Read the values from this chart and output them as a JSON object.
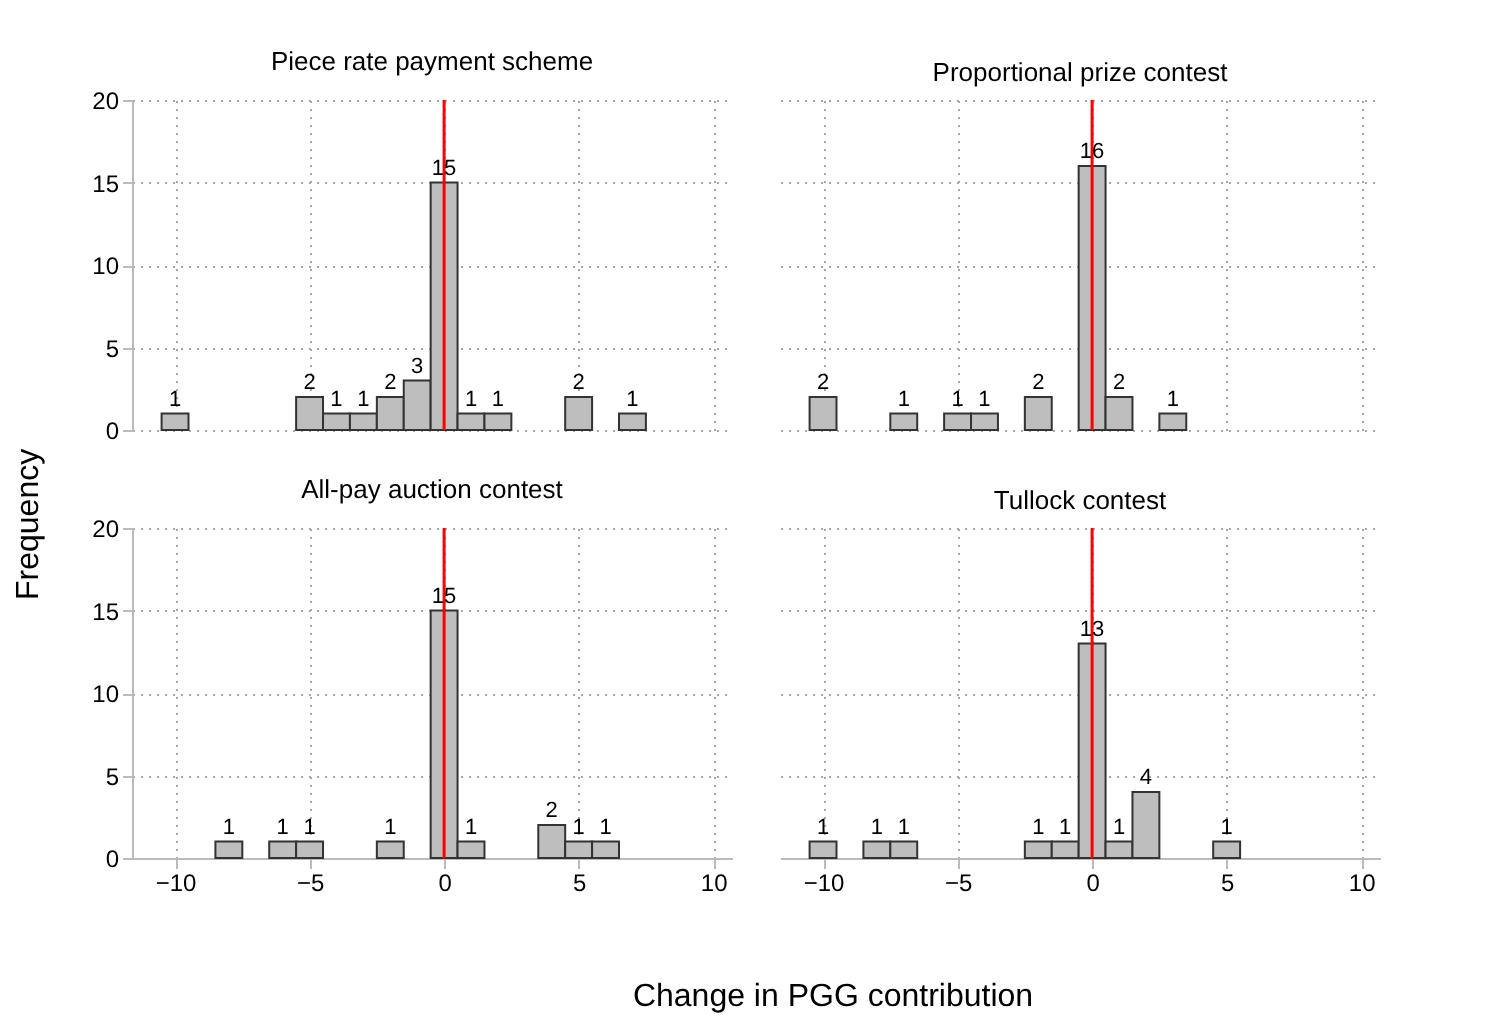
{
  "chart_data": [
    {
      "type": "histogram",
      "title": "Piece rate payment scheme",
      "ylabel": "Frequency",
      "bins": [
        -10.5,
        -9.5,
        -8.5,
        -7.5,
        -6.5,
        -5.5,
        -4.5,
        -3.5,
        -2.5,
        -1.5,
        -0.5,
        0.5,
        1.5,
        2.5,
        3.5,
        4.5,
        5.5,
        6.5,
        7.5
      ],
      "values": [
        1,
        0,
        0,
        0,
        0,
        2,
        1,
        1,
        2,
        3,
        15,
        1,
        1,
        0,
        0,
        2,
        0,
        1
      ],
      "value_labels": [
        "1",
        null,
        null,
        null,
        null,
        "2",
        "1",
        "1",
        "2",
        "3",
        "15",
        "1",
        "1",
        null,
        null,
        "2",
        null,
        "1"
      ],
      "color": "#bebebe",
      "xlim": [
        -11.6,
        10.7
      ],
      "xticks": [
        -10,
        -5,
        0,
        5,
        10
      ],
      "ylim": [
        0,
        20
      ],
      "yticks": [
        0,
        5,
        10,
        15,
        20
      ],
      "grid": true,
      "tick_labels": "y",
      "ref_lines": [
        {
          "axis": "x",
          "value": 0,
          "color": "#ff0000"
        }
      ]
    },
    {
      "type": "histogram",
      "title": "Proportional prize contest",
      "bins": [
        -10.5,
        -9.5,
        -8.5,
        -7.5,
        -6.5,
        -5.5,
        -4.5,
        -3.5,
        -2.5,
        -1.5,
        -0.5,
        0.5,
        1.5,
        2.5,
        3.5,
        4.5,
        5.5,
        6.5,
        7.5
      ],
      "values": [
        2,
        0,
        0,
        1,
        0,
        1,
        1,
        0,
        2,
        0,
        16,
        2,
        0,
        1,
        0,
        0,
        0,
        0
      ],
      "value_labels": [
        "2",
        null,
        null,
        "1",
        null,
        "1",
        "1",
        null,
        "2",
        null,
        "16",
        "2",
        null,
        "1",
        null,
        null,
        null,
        null
      ],
      "color": "#bebebe",
      "xlim": [
        -11.6,
        10.7
      ],
      "xticks": [
        -10,
        -5,
        0,
        5,
        10
      ],
      "ylim": [
        0,
        20
      ],
      "yticks": [
        0,
        5,
        10,
        15,
        20
      ],
      "grid": true,
      "tick_labels": false,
      "ref_lines": [
        {
          "axis": "x",
          "value": 0,
          "color": "#ff0000"
        }
      ]
    },
    {
      "type": "histogram",
      "title": "All-pay auction contest",
      "xlabel": "Change in PGG contribution",
      "bins": [
        -10.5,
        -9.5,
        -8.5,
        -7.5,
        -6.5,
        -5.5,
        -4.5,
        -3.5,
        -2.5,
        -1.5,
        -0.5,
        0.5,
        1.5,
        2.5,
        3.5,
        4.5,
        5.5,
        6.5,
        7.5
      ],
      "values": [
        0,
        0,
        1,
        0,
        1,
        1,
        0,
        0,
        1,
        0,
        15,
        1,
        0,
        0,
        2,
        1,
        1,
        0
      ],
      "value_labels": [
        null,
        null,
        "1",
        null,
        "1",
        "1",
        null,
        null,
        "1",
        null,
        "15",
        "1",
        null,
        null,
        "2",
        "1",
        "1",
        null
      ],
      "color": "#bebebe",
      "xlim": [
        -11.6,
        10.7
      ],
      "xticks": [
        -10,
        -5,
        0,
        5,
        10
      ],
      "ylim": [
        0,
        20
      ],
      "yticks": [
        0,
        5,
        10,
        15,
        20
      ],
      "grid": true,
      "ref_lines": [
        {
          "axis": "x",
          "value": 0,
          "color": "#ff0000"
        }
      ]
    },
    {
      "type": "histogram",
      "title": "Tullock contest",
      "bins": [
        -10.5,
        -9.5,
        -8.5,
        -7.5,
        -6.5,
        -5.5,
        -4.5,
        -3.5,
        -2.5,
        -1.5,
        -0.5,
        0.5,
        1.5,
        2.5,
        3.5,
        4.5,
        5.5,
        6.5,
        7.5
      ],
      "values": [
        1,
        0,
        1,
        1,
        0,
        0,
        0,
        0,
        1,
        1,
        13,
        1,
        4,
        0,
        0,
        1,
        0,
        0
      ],
      "value_labels": [
        "1",
        null,
        "1",
        "1",
        null,
        null,
        null,
        null,
        "1",
        "1",
        "13",
        "1",
        "4",
        null,
        null,
        "1",
        null,
        null
      ],
      "color": "#bebebe",
      "xlim": [
        -11.6,
        10.7
      ],
      "xticks": [
        -10,
        -5,
        0,
        5,
        10
      ],
      "ylim": [
        0,
        20
      ],
      "yticks": [
        0,
        5,
        10,
        15,
        20
      ],
      "grid": true,
      "tick_labels": "x",
      "ref_lines": [
        {
          "axis": "x",
          "value": 0,
          "color": "#ff0000"
        }
      ]
    }
  ]
}
